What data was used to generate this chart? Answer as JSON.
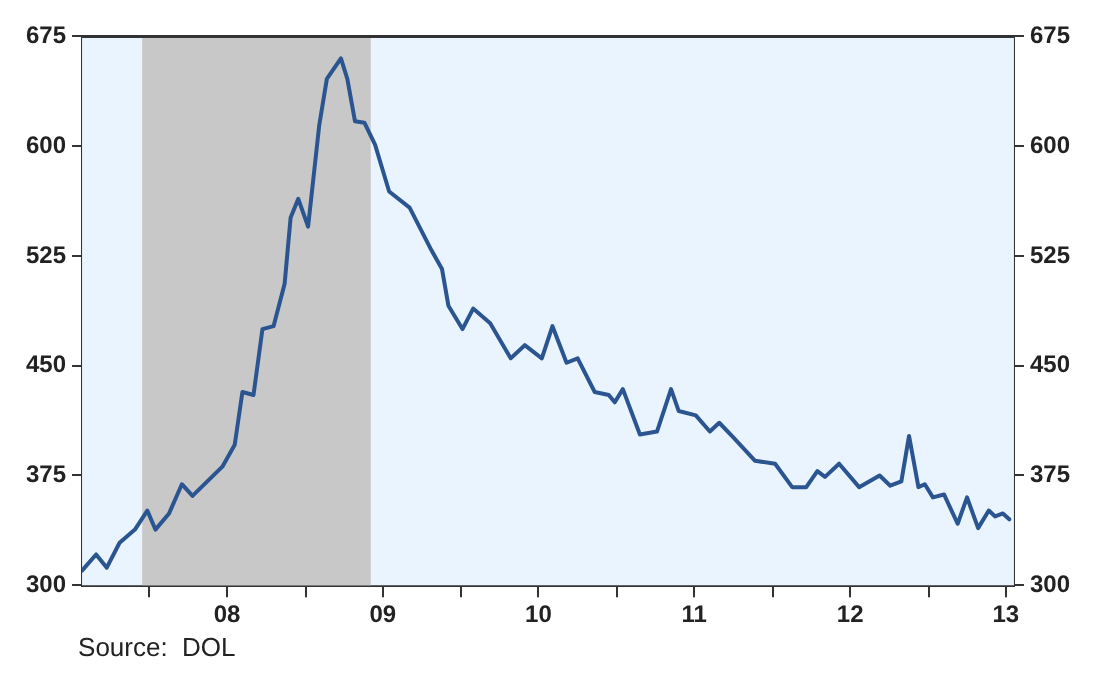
{
  "chart_data": {
    "type": "line",
    "x": [
      "2007-07-27",
      "2007-08-29",
      "2007-09-23",
      "2007-10-23",
      "2007-11-28",
      "2007-12-27",
      "2008-01-15",
      "2008-02-16",
      "2008-03-17",
      "2008-04-11",
      "2008-06-20",
      "2008-07-19",
      "2008-08-06",
      "2008-09-01",
      "2008-09-22",
      "2008-10-18",
      "2008-11-13",
      "2008-11-27",
      "2008-12-15",
      "2009-01-07",
      "2009-02-02",
      "2009-02-20",
      "2009-03-25",
      "2009-04-09",
      "2009-04-27",
      "2009-05-19",
      "2009-06-13",
      "2009-07-16",
      "2009-09-02",
      "2009-10-23",
      "2009-11-17",
      "2009-12-02",
      "2010-01-04",
      "2010-01-29",
      "2010-03-10",
      "2010-04-27",
      "2010-05-30",
      "2010-07-09",
      "2010-08-03",
      "2010-09-05",
      "2010-10-01",
      "2010-11-10",
      "2010-12-13",
      "2010-12-27",
      "2011-01-15",
      "2011-02-24",
      "2011-04-05",
      "2011-05-08",
      "2011-05-26",
      "2011-07-05",
      "2011-08-07",
      "2011-08-29",
      "2011-10-01",
      "2011-11-21",
      "2012-01-07",
      "2012-02-16",
      "2012-03-20",
      "2012-04-15",
      "2012-05-03",
      "2012-06-05",
      "2012-07-22",
      "2012-09-08",
      "2012-10-03",
      "2012-10-29",
      "2012-11-16",
      "2012-12-08",
      "2012-12-23",
      "2013-01-11",
      "2013-02-06",
      "2013-03-10",
      "2013-04-01",
      "2013-04-27",
      "2013-05-22",
      "2013-06-06",
      "2013-06-24",
      "2013-07-09"
    ],
    "series": [
      {
        "color": "#2a5590",
        "values": [
          310,
          321,
          312,
          329,
          338,
          351,
          338,
          349,
          369,
          361,
          381,
          396,
          432,
          430,
          475,
          477,
          506,
          551,
          564,
          545,
          614,
          646,
          660,
          646,
          617,
          616,
          601,
          569,
          558,
          529,
          516,
          491,
          475,
          489,
          479,
          455,
          464,
          455,
          477,
          452,
          455,
          432,
          430,
          425,
          434,
          403,
          405,
          434,
          419,
          416,
          405,
          411,
          401,
          385,
          383,
          367,
          367,
          378,
          374,
          383,
          367,
          375,
          368,
          371,
          402,
          367,
          369,
          360,
          362,
          342,
          360,
          339,
          351,
          347,
          349,
          345
        ]
      }
    ],
    "xlim": [
      "2007-07-27",
      "2013-07-20"
    ],
    "xticks": [
      {
        "value": "2008-01-01",
        "label": null
      },
      {
        "value": "2008-07-01",
        "label": "08"
      },
      {
        "value": "2009-01-01",
        "label": null
      },
      {
        "value": "2009-07-01",
        "label": "09"
      },
      {
        "value": "2010-01-01",
        "label": null
      },
      {
        "value": "2010-07-01",
        "label": "10"
      },
      {
        "value": "2011-01-01",
        "label": null
      },
      {
        "value": "2011-07-01",
        "label": "11"
      },
      {
        "value": "2012-01-01",
        "label": null
      },
      {
        "value": "2012-07-01",
        "label": "12"
      },
      {
        "value": "2013-01-01",
        "label": null
      },
      {
        "value": "2013-07-01",
        "label": "13"
      }
    ],
    "ylim": [
      300,
      675
    ],
    "yticks": [
      300,
      375,
      450,
      525,
      600,
      675
    ],
    "y2lim": [
      300,
      675
    ],
    "y2ticks": [
      300,
      375,
      450,
      525,
      600,
      675
    ],
    "bands": [
      {
        "axis": "x",
        "from": "2007-12-15",
        "to": "2009-06-03",
        "color": "#c8c8c8"
      }
    ],
    "annotations": [
      "Source:  DOL"
    ],
    "legend": false,
    "marker": "none",
    "line_style": "solid"
  }
}
